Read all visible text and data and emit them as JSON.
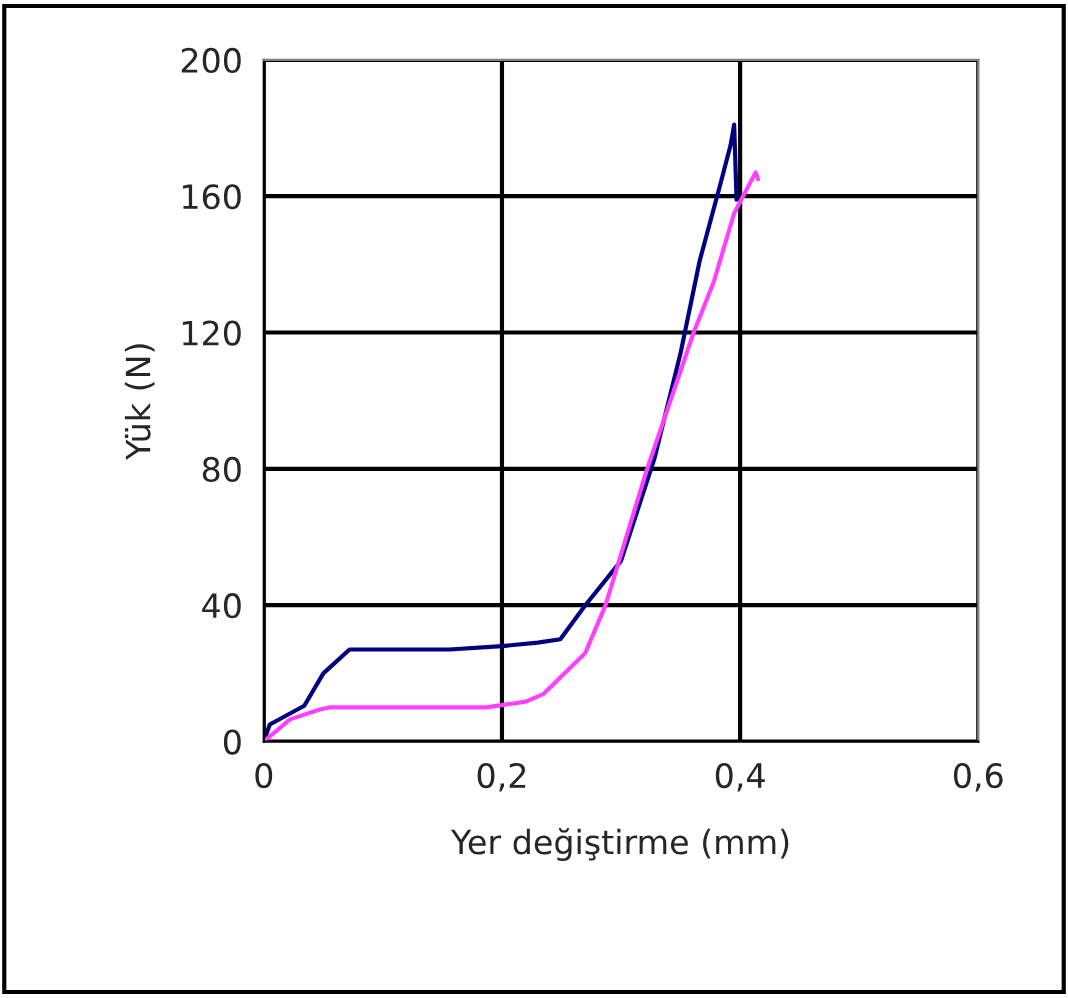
{
  "chart_data": {
    "type": "line",
    "xlabel": "Yer değiştirme (mm)",
    "ylabel": "Yük (N)",
    "xlim": [
      0,
      0.6
    ],
    "xticks": [
      {
        "value": 0,
        "label": "0"
      },
      {
        "value": 0.2,
        "label": "0,2"
      },
      {
        "value": 0.4,
        "label": "0,4"
      },
      {
        "value": 0.6,
        "label": "0,6"
      }
    ],
    "ylim": [
      0,
      200
    ],
    "yticks": [
      0,
      40,
      80,
      120,
      160,
      200
    ],
    "grid": true,
    "marker": "none",
    "line_style": "solid",
    "series": [
      {
        "color": "#000080",
        "x": [
          0,
          0.005,
          0.034,
          0.05,
          0.072,
          0.1,
          0.156,
          0.2,
          0.23,
          0.249,
          0.27,
          0.3,
          0.328,
          0.35,
          0.366,
          0.383,
          0.392,
          0.395,
          0.397
        ],
        "values": [
          0,
          5,
          10.5,
          20,
          27,
          27,
          27,
          28,
          29,
          30,
          40,
          53,
          83,
          114,
          141,
          163,
          175,
          181,
          159
        ]
      },
      {
        "color": "#ff40ff",
        "x": [
          0,
          0.022,
          0.047,
          0.055,
          0.1,
          0.187,
          0.22,
          0.235,
          0.27,
          0.287,
          0.321,
          0.361,
          0.378,
          0.395,
          0.413,
          0.415
        ],
        "values": [
          0,
          6.5,
          9.4,
          10,
          10,
          10,
          11.7,
          14,
          26,
          40,
          79,
          120,
          135,
          155,
          167,
          165
        ]
      }
    ]
  }
}
